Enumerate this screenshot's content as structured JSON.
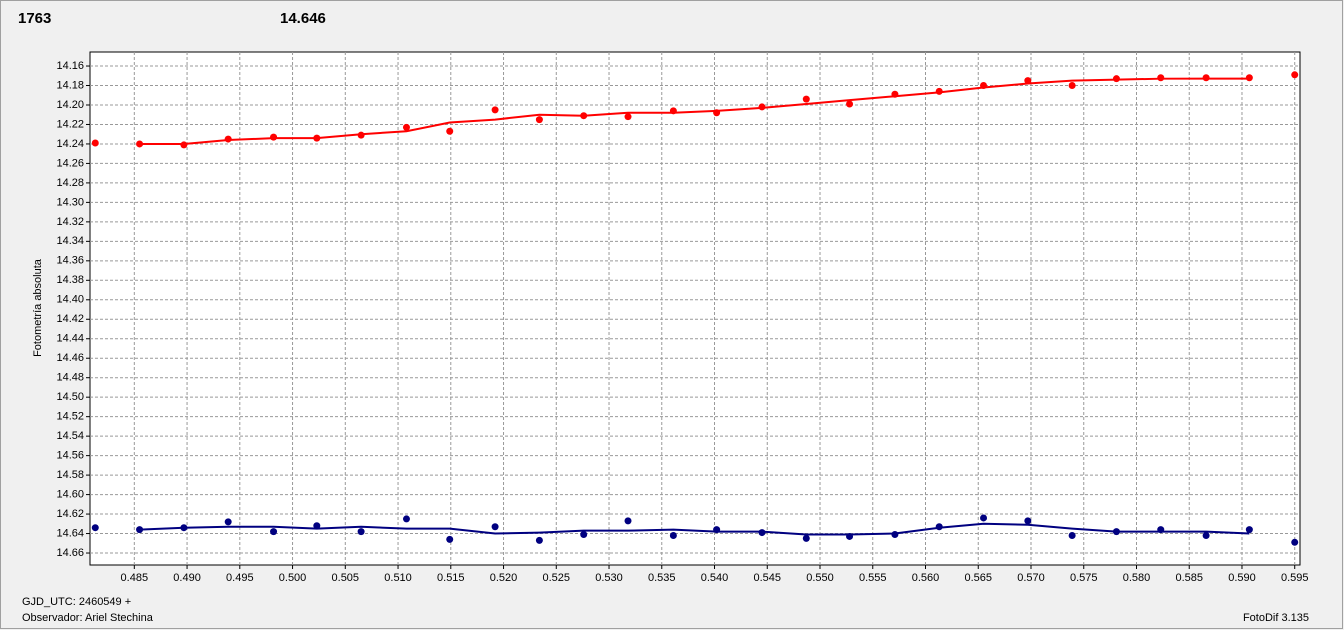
{
  "chart_data": {
    "type": "line",
    "title": "1763",
    "title_color": "#ff0000",
    "subtitle": "14.646",
    "subtitle_color": "#000080",
    "y_label": "Fotometría absoluta",
    "x_label": "GJD_UTC: 2460549 +",
    "annotations": [
      "Observador: Ariel Stechina",
      "FotoDif 3.135"
    ],
    "x": [
      0.4813,
      0.4855,
      0.4897,
      0.4939,
      0.4982,
      0.5023,
      0.5065,
      0.5108,
      0.5149,
      0.5192,
      0.5234,
      0.5276,
      0.5318,
      0.5361,
      0.5402,
      0.5445,
      0.5487,
      0.5528,
      0.5571,
      0.5613,
      0.5655,
      0.5697,
      0.5739,
      0.5781,
      0.5823,
      0.5866,
      0.5907,
      0.595
    ],
    "series": [
      {
        "color": "#ff0000",
        "values": [
          14.239,
          14.24,
          14.241,
          14.235,
          14.233,
          14.234,
          14.231,
          14.223,
          14.227,
          14.205,
          14.215,
          14.211,
          14.212,
          14.206,
          14.208,
          14.202,
          14.194,
          14.199,
          14.189,
          14.186,
          14.18,
          14.175,
          14.18,
          14.173,
          14.172,
          14.172,
          14.172,
          14.169
        ],
        "trend": [
          null,
          14.24,
          14.24,
          14.236,
          14.234,
          14.234,
          14.23,
          14.227,
          14.218,
          14.215,
          14.21,
          14.211,
          14.208,
          14.208,
          14.206,
          14.203,
          14.199,
          14.195,
          14.191,
          14.187,
          14.182,
          14.178,
          14.175,
          14.174,
          14.173,
          14.173,
          14.173,
          null
        ]
      },
      {
        "color": "#000080",
        "values": [
          14.634,
          14.636,
          14.634,
          14.628,
          14.638,
          14.632,
          14.638,
          14.625,
          14.646,
          14.633,
          14.647,
          14.641,
          14.627,
          14.642,
          14.636,
          14.639,
          14.645,
          14.643,
          14.641,
          14.633,
          14.624,
          14.627,
          14.642,
          14.638,
          14.636,
          14.642,
          14.636,
          14.649
        ],
        "trend": [
          null,
          14.636,
          14.634,
          14.633,
          14.633,
          14.635,
          14.633,
          14.635,
          14.635,
          14.64,
          14.639,
          14.637,
          14.637,
          14.636,
          14.638,
          14.638,
          14.641,
          14.641,
          14.64,
          14.634,
          14.63,
          14.631,
          14.635,
          14.638,
          14.638,
          14.638,
          14.64,
          null
        ]
      }
    ],
    "xlim": [
      0.4808,
      0.5955
    ],
    "xticks": [
      0.485,
      {
        "value": 0.49,
        "label": "0.490"
      },
      0.495,
      {
        "value": 0.5,
        "label": "0.500"
      },
      0.505,
      {
        "value": 0.51,
        "label": "0.510"
      },
      0.515,
      {
        "value": 0.52,
        "label": "0.520"
      },
      0.525,
      {
        "value": 0.53,
        "label": "0.530"
      },
      0.535,
      {
        "value": 0.54,
        "label": "0.540"
      },
      0.545,
      {
        "value": 0.55,
        "label": "0.550"
      },
      0.555,
      {
        "value": 0.56,
        "label": "0.560"
      },
      0.565,
      {
        "value": 0.57,
        "label": "0.570"
      },
      0.575,
      {
        "value": 0.58,
        "label": "0.580"
      },
      0.585,
      {
        "value": 0.59,
        "label": "0.590"
      },
      0.595
    ],
    "ylim": [
      14.1456,
      14.6723
    ],
    "y_inverted": true,
    "yticks": [
      14.16,
      14.18,
      {
        "value": 14.2,
        "label": "14.20"
      },
      14.22,
      14.24,
      14.26,
      14.28,
      {
        "value": 14.3,
        "label": "14.30"
      },
      14.32,
      14.34,
      14.36,
      14.38,
      {
        "value": 14.4,
        "label": "14.40"
      },
      14.42,
      14.44,
      14.46,
      14.48,
      {
        "value": 14.5,
        "label": "14.50"
      },
      14.52,
      14.54,
      14.56,
      14.58,
      {
        "value": 14.6,
        "label": "14.60"
      },
      14.62,
      14.64,
      14.66
    ],
    "grid": true
  }
}
